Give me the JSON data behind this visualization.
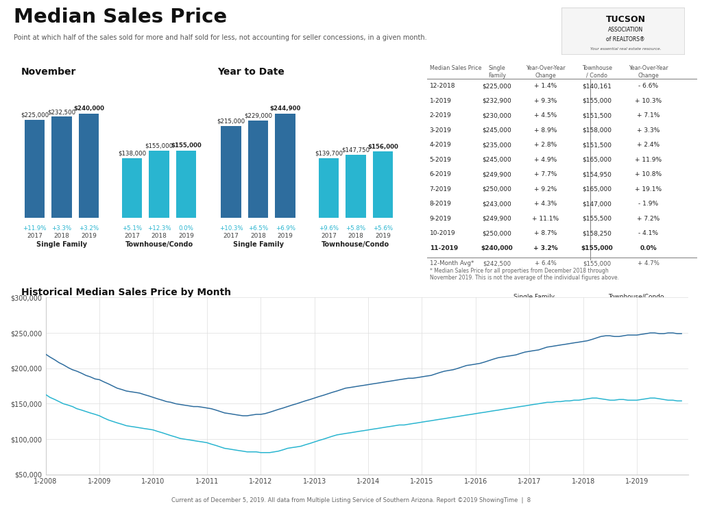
{
  "title": "Median Sales Price",
  "subtitle": "Point at which half of the sales sold for more and half sold for less, not accounting for seller concessions, in a given month.",
  "footer": "Current as of December 5, 2019. All data from Multiple Listing Service of Southern Arizona. Report ©2019 ShowingTime  |  8",
  "nov_sf_values": [
    225000,
    232500,
    240000
  ],
  "nov_sf_pct": [
    "+11.9%",
    "+3.3%",
    "+3.2%"
  ],
  "nov_tc_values": [
    138000,
    155000,
    155000
  ],
  "nov_tc_pct": [
    "+5.1%",
    "+12.3%",
    "0.0%"
  ],
  "ytd_sf_values": [
    215000,
    229000,
    244900
  ],
  "ytd_sf_pct": [
    "+10.3%",
    "+6.5%",
    "+6.9%"
  ],
  "ytd_tc_values": [
    139700,
    147750,
    156000
  ],
  "ytd_tc_pct": [
    "+9.6%",
    "+5.8%",
    "+5.6%"
  ],
  "years": [
    "2017",
    "2018",
    "2019"
  ],
  "color_sf": "#2e6d9e",
  "color_tc": "#29b5d0",
  "table_rows": [
    [
      "12-2018",
      "$225,000",
      "+ 1.4%",
      "$140,161",
      "- 6.6%"
    ],
    [
      "1-2019",
      "$232,900",
      "+ 9.3%",
      "$155,000",
      "+ 10.3%"
    ],
    [
      "2-2019",
      "$230,000",
      "+ 4.5%",
      "$151,500",
      "+ 7.1%"
    ],
    [
      "3-2019",
      "$245,000",
      "+ 8.9%",
      "$158,000",
      "+ 3.3%"
    ],
    [
      "4-2019",
      "$235,000",
      "+ 2.8%",
      "$151,500",
      "+ 2.4%"
    ],
    [
      "5-2019",
      "$245,000",
      "+ 4.9%",
      "$165,000",
      "+ 11.9%"
    ],
    [
      "6-2019",
      "$249,900",
      "+ 7.7%",
      "$154,950",
      "+ 10.8%"
    ],
    [
      "7-2019",
      "$250,000",
      "+ 9.2%",
      "$165,000",
      "+ 19.1%"
    ],
    [
      "8-2019",
      "$243,000",
      "+ 4.3%",
      "$147,000",
      "- 1.9%"
    ],
    [
      "9-2019",
      "$249,900",
      "+ 11.1%",
      "$155,500",
      "+ 7.2%"
    ],
    [
      "10-2019",
      "$250,000",
      "+ 8.7%",
      "$158,250",
      "- 4.1%"
    ],
    [
      "11-2019",
      "$240,000",
      "+ 3.2%",
      "$155,000",
      "0.0%"
    ]
  ],
  "table_bold_row": 11,
  "table_avg_row": [
    "12-Month Avg*",
    "$242,500",
    "+ 6.4%",
    "$155,000",
    "+ 4.7%"
  ],
  "table_headers": [
    "Median Sales Price",
    "Single\nFamily",
    "Year-Over-Year\nChange",
    "Townhouse\n/ Condo",
    "Year-Over-Year\nChange"
  ],
  "table_note": "* Median Sales Price for all properties from December 2018 through\nNovember 2019. This is not the average of the individual figures above.",
  "hist_sf_x": [
    2008.0,
    2008.08,
    2008.17,
    2008.25,
    2008.33,
    2008.42,
    2008.5,
    2008.58,
    2008.67,
    2008.75,
    2008.83,
    2008.92,
    2009.0,
    2009.08,
    2009.17,
    2009.25,
    2009.33,
    2009.42,
    2009.5,
    2009.58,
    2009.67,
    2009.75,
    2009.83,
    2009.92,
    2010.0,
    2010.08,
    2010.17,
    2010.25,
    2010.33,
    2010.42,
    2010.5,
    2010.58,
    2010.67,
    2010.75,
    2010.83,
    2010.92,
    2011.0,
    2011.08,
    2011.17,
    2011.25,
    2011.33,
    2011.42,
    2011.5,
    2011.58,
    2011.67,
    2011.75,
    2011.83,
    2011.92,
    2012.0,
    2012.08,
    2012.17,
    2012.25,
    2012.33,
    2012.42,
    2012.5,
    2012.58,
    2012.67,
    2012.75,
    2012.83,
    2012.92,
    2013.0,
    2013.08,
    2013.17,
    2013.25,
    2013.33,
    2013.42,
    2013.5,
    2013.58,
    2013.67,
    2013.75,
    2013.83,
    2013.92,
    2014.0,
    2014.08,
    2014.17,
    2014.25,
    2014.33,
    2014.42,
    2014.5,
    2014.58,
    2014.67,
    2014.75,
    2014.83,
    2014.92,
    2015.0,
    2015.08,
    2015.17,
    2015.25,
    2015.33,
    2015.42,
    2015.5,
    2015.58,
    2015.67,
    2015.75,
    2015.83,
    2015.92,
    2016.0,
    2016.08,
    2016.17,
    2016.25,
    2016.33,
    2016.42,
    2016.5,
    2016.58,
    2016.67,
    2016.75,
    2016.83,
    2016.92,
    2017.0,
    2017.08,
    2017.17,
    2017.25,
    2017.33,
    2017.42,
    2017.5,
    2017.58,
    2017.67,
    2017.75,
    2017.83,
    2017.92,
    2018.0,
    2018.08,
    2018.17,
    2018.25,
    2018.33,
    2018.42,
    2018.5,
    2018.58,
    2018.67,
    2018.75,
    2018.83,
    2018.92,
    2019.0,
    2019.08,
    2019.17,
    2019.25,
    2019.33,
    2019.42,
    2019.5,
    2019.58,
    2019.67,
    2019.75,
    2019.83
  ],
  "hist_sf_y": [
    220000,
    216000,
    212000,
    208000,
    205000,
    201000,
    198000,
    196000,
    193000,
    190000,
    188000,
    185000,
    184000,
    181000,
    178000,
    175000,
    172000,
    170000,
    168000,
    167000,
    166000,
    165000,
    163000,
    161000,
    159000,
    157000,
    155000,
    153000,
    152000,
    150000,
    149000,
    148000,
    147000,
    146000,
    146000,
    145000,
    144000,
    143000,
    141000,
    139000,
    137000,
    136000,
    135000,
    134000,
    133000,
    133000,
    134000,
    135000,
    135000,
    136000,
    138000,
    140000,
    142000,
    144000,
    146000,
    148000,
    150000,
    152000,
    154000,
    156000,
    158000,
    160000,
    162000,
    164000,
    166000,
    168000,
    170000,
    172000,
    173000,
    174000,
    175000,
    176000,
    177000,
    178000,
    179000,
    180000,
    181000,
    182000,
    183000,
    184000,
    185000,
    186000,
    186000,
    187000,
    188000,
    189000,
    190000,
    192000,
    194000,
    196000,
    197000,
    198000,
    200000,
    202000,
    204000,
    205000,
    206000,
    207000,
    209000,
    211000,
    213000,
    215000,
    216000,
    217000,
    218000,
    219000,
    221000,
    223000,
    224000,
    225000,
    226000,
    228000,
    230000,
    231000,
    232000,
    233000,
    234000,
    235000,
    236000,
    237000,
    238000,
    239000,
    241000,
    243000,
    245000,
    246000,
    246000,
    245000,
    245000,
    246000,
    247000,
    247000,
    247000,
    248000,
    249000,
    250000,
    250000,
    249000,
    249000,
    250000,
    250000,
    249000,
    249000
  ],
  "hist_tc_y": [
    163000,
    159000,
    156000,
    153000,
    150000,
    148000,
    146000,
    143000,
    141000,
    139000,
    137000,
    135000,
    133000,
    130000,
    127000,
    125000,
    123000,
    121000,
    119000,
    118000,
    117000,
    116000,
    115000,
    114000,
    113000,
    111000,
    109000,
    107000,
    105000,
    103000,
    101000,
    100000,
    99000,
    98000,
    97000,
    96000,
    95000,
    93000,
    91000,
    89000,
    87000,
    86000,
    85000,
    84000,
    83000,
    82000,
    82000,
    82000,
    81000,
    81000,
    81000,
    82000,
    83000,
    85000,
    87000,
    88000,
    89000,
    90000,
    92000,
    94000,
    96000,
    98000,
    100000,
    102000,
    104000,
    106000,
    107000,
    108000,
    109000,
    110000,
    111000,
    112000,
    113000,
    114000,
    115000,
    116000,
    117000,
    118000,
    119000,
    120000,
    120000,
    121000,
    122000,
    123000,
    124000,
    125000,
    126000,
    127000,
    128000,
    129000,
    130000,
    131000,
    132000,
    133000,
    134000,
    135000,
    136000,
    137000,
    138000,
    139000,
    140000,
    141000,
    142000,
    143000,
    144000,
    145000,
    146000,
    147000,
    148000,
    149000,
    150000,
    151000,
    152000,
    152000,
    153000,
    153000,
    154000,
    154000,
    155000,
    155000,
    156000,
    157000,
    158000,
    158000,
    157000,
    156000,
    155000,
    155000,
    156000,
    156000,
    155000,
    155000,
    155000,
    156000,
    157000,
    158000,
    158000,
    157000,
    156000,
    155000,
    155000,
    154000,
    154000
  ]
}
